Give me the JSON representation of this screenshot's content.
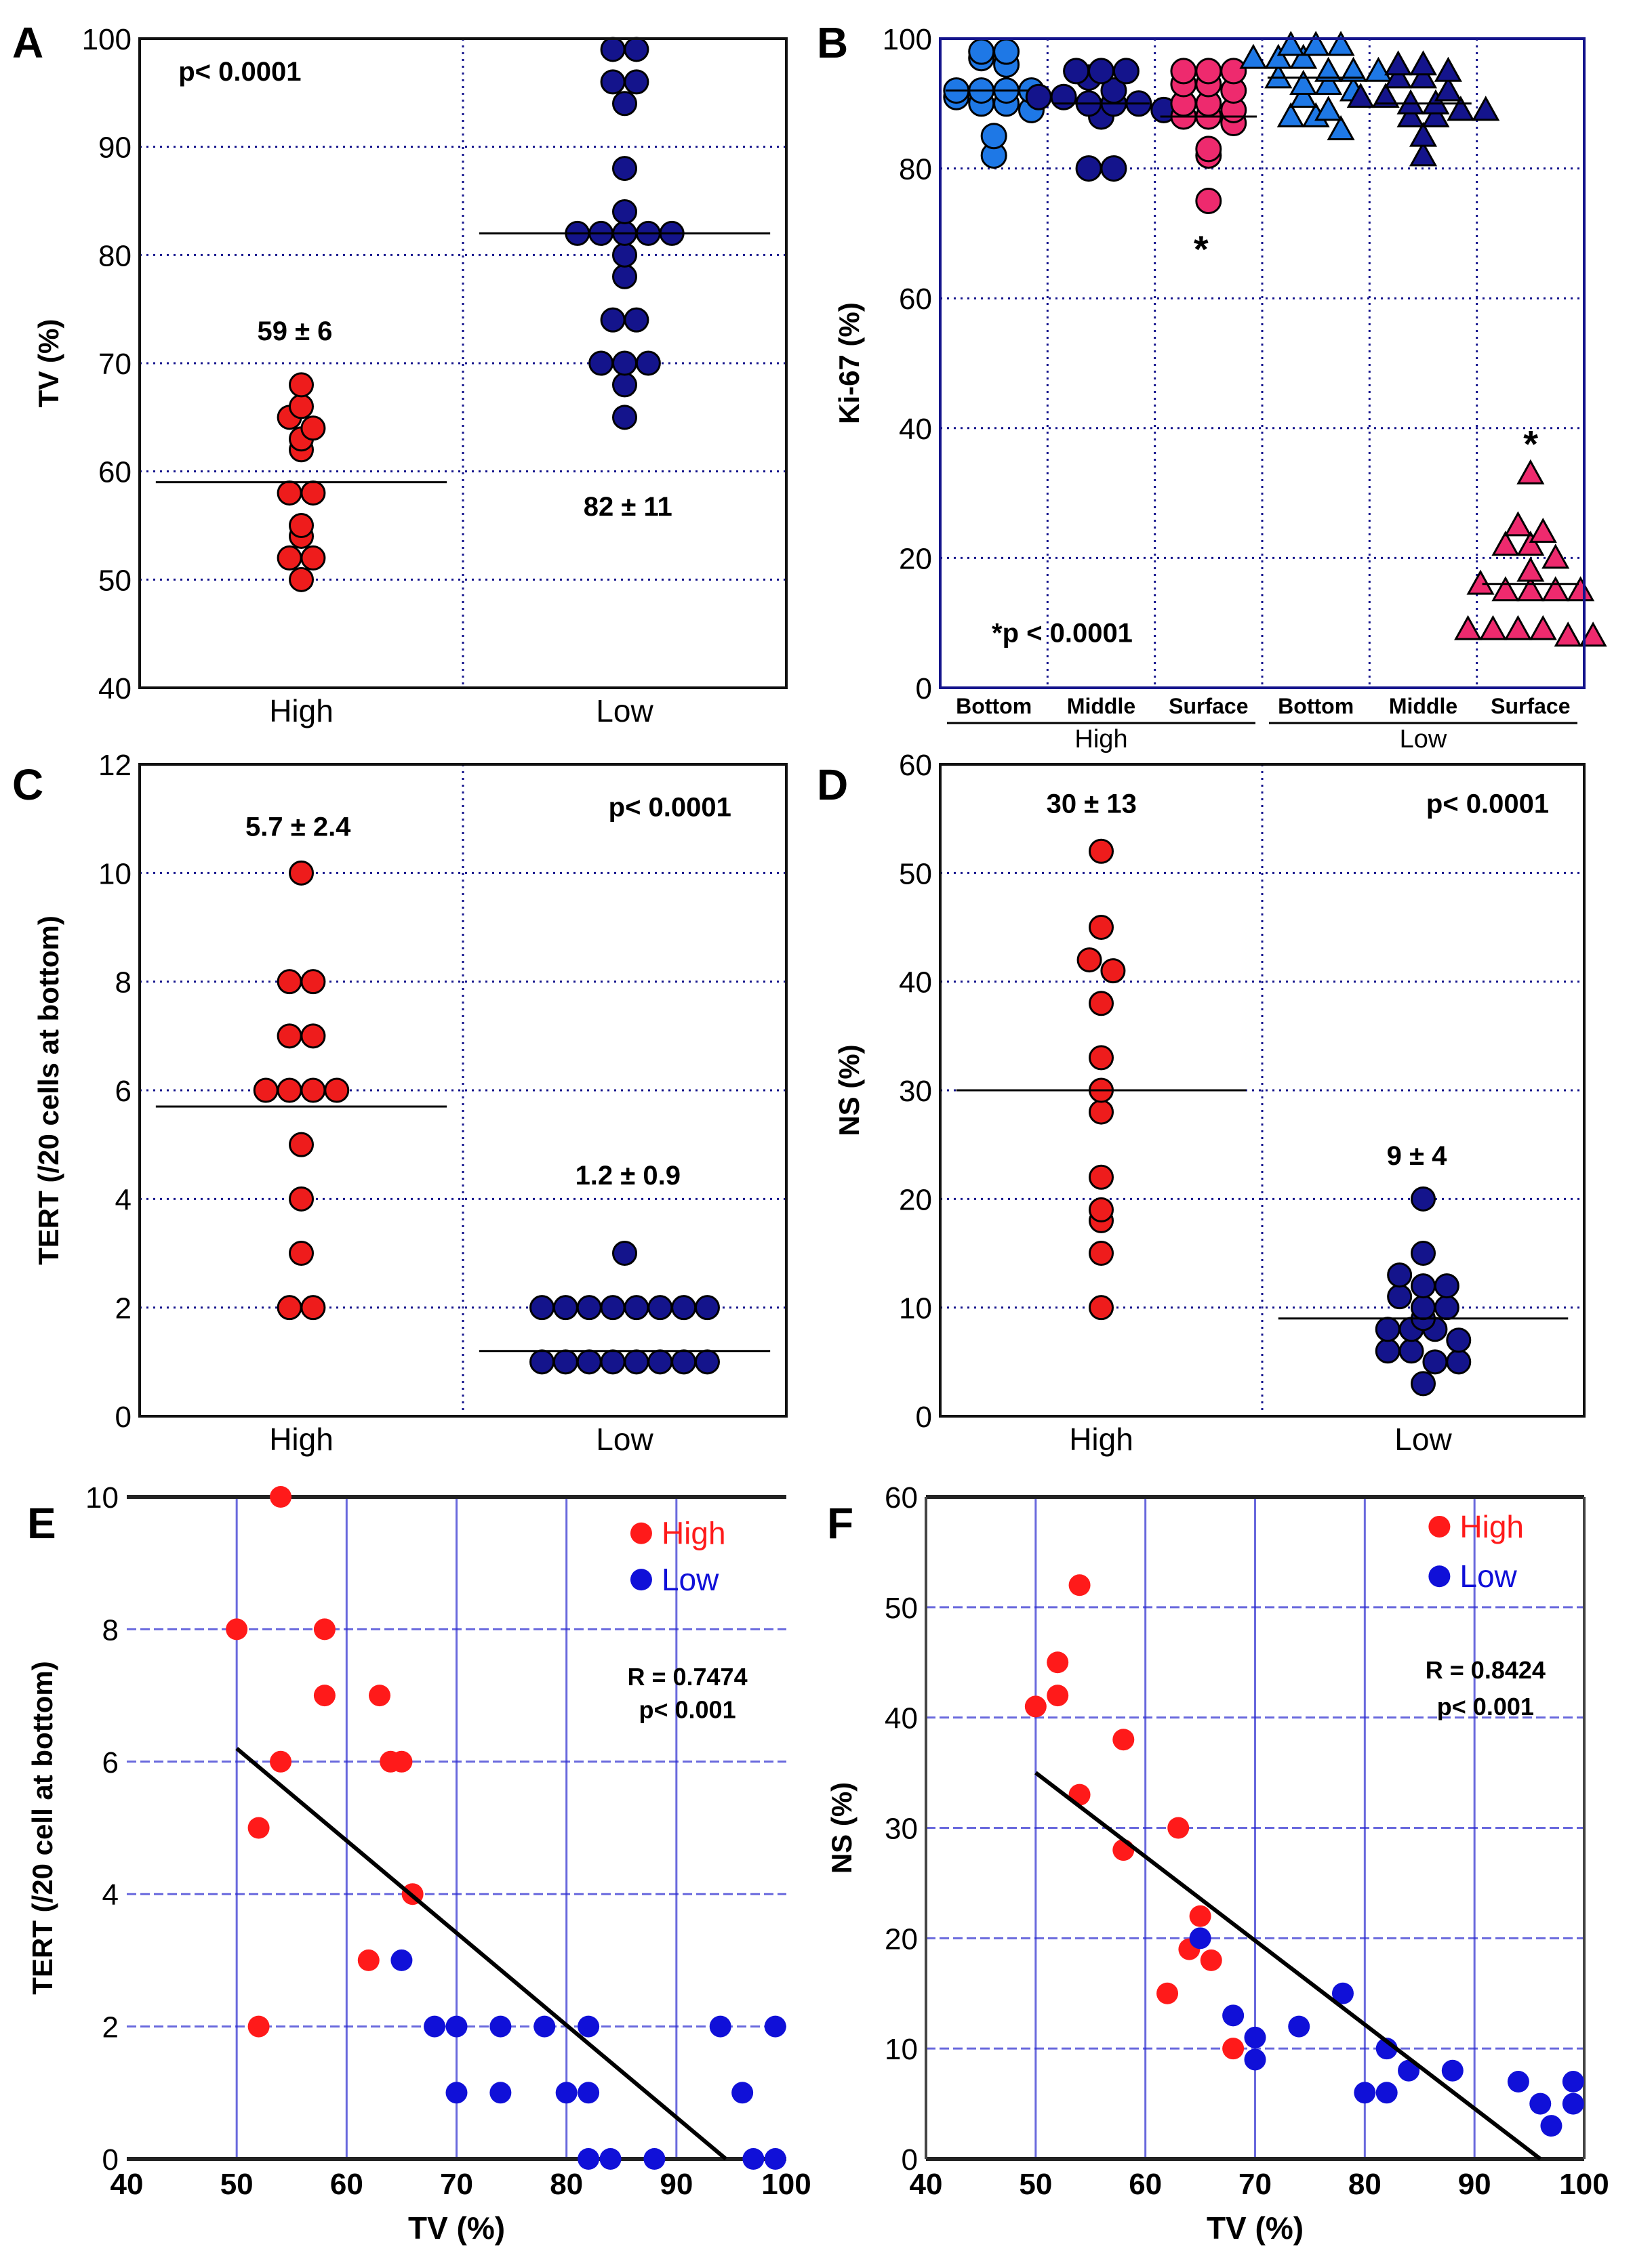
{
  "chart_data": [
    {
      "panel": "A",
      "type": "strip",
      "ylabel": "TV (%)",
      "ylim": [
        40,
        100
      ],
      "ytick_labels": [
        "40",
        "50",
        "60",
        "70",
        "80",
        "90",
        "100"
      ],
      "categories": [
        "High",
        "Low"
      ],
      "groups": [
        {
          "name": "High",
          "marker": "circle",
          "color": "#ee1c1c",
          "mean": 59,
          "values": [
            68,
            66,
            65,
            64,
            63,
            62,
            58,
            58,
            55,
            54,
            52,
            52,
            50
          ]
        },
        {
          "name": "Low",
          "marker": "circle",
          "color": "#14148c",
          "mean": 82,
          "values": [
            99,
            99,
            96,
            96,
            94,
            88,
            84,
            82,
            82,
            82,
            82,
            82,
            80,
            78,
            74,
            74,
            70,
            70,
            70,
            68,
            65
          ]
        }
      ],
      "annotations": [
        "p< 0.0001",
        "59 ± 6",
        "82 ± 11"
      ]
    },
    {
      "panel": "B",
      "type": "strip",
      "ylabel": "Ki-67 (%)",
      "ylim": [
        0,
        100
      ],
      "ytick_labels": [
        "0",
        "20",
        "40",
        "60",
        "80",
        "100"
      ],
      "categories": [
        "Bottom",
        "Middle",
        "Surface",
        "Bottom",
        "Middle",
        "Surface"
      ],
      "group_labels": [
        "High",
        "Low"
      ],
      "groups": [
        {
          "name": "High Bottom",
          "marker": "circle",
          "color": "#1e78e6",
          "mean": 92,
          "values": [
            98,
            98,
            97,
            96,
            92,
            92,
            92,
            92,
            91,
            90,
            90,
            89,
            85,
            82
          ]
        },
        {
          "name": "High Middle",
          "marker": "circle",
          "color": "#14148c",
          "mean": 90,
          "values": [
            95,
            95,
            95,
            94,
            92,
            91,
            91,
            90,
            90,
            90,
            89,
            88,
            80,
            80
          ]
        },
        {
          "name": "High Surface",
          "marker": "circle",
          "color": "#ee2a6e",
          "mean": 88,
          "values": [
            95,
            95,
            95,
            93,
            93,
            92,
            90,
            90,
            89,
            88,
            88,
            87,
            83,
            82,
            75
          ]
        },
        {
          "name": "Low Bottom",
          "marker": "triangle",
          "color": "#1e78e6",
          "mean": 94,
          "values": [
            99,
            99,
            99,
            97,
            97,
            97,
            95,
            95,
            95,
            94,
            93,
            93,
            92,
            91,
            89,
            88,
            88,
            86
          ]
        },
        {
          "name": "Low Middle",
          "marker": "triangle",
          "color": "#14148c",
          "mean": 90,
          "values": [
            96,
            96,
            95,
            94,
            94,
            92,
            91,
            91,
            90,
            90,
            89,
            89,
            88,
            88,
            85,
            82
          ]
        },
        {
          "name": "Low Surface",
          "marker": "triangle",
          "color": "#ee2a6e",
          "mean": 16,
          "values": [
            33,
            25,
            24,
            22,
            22,
            20,
            18,
            16,
            15,
            15,
            15,
            15,
            9,
            9,
            9,
            9,
            8,
            8
          ]
        }
      ],
      "annotations": [
        "*",
        "*",
        "*p < 0.0001"
      ]
    },
    {
      "panel": "C",
      "type": "strip",
      "ylabel": "TERT (/20 cells at bottom)",
      "ylim": [
        0,
        12
      ],
      "ytick_labels": [
        "0",
        "2",
        "4",
        "6",
        "8",
        "10",
        "12"
      ],
      "categories": [
        "High",
        "Low"
      ],
      "groups": [
        {
          "name": "High",
          "marker": "circle",
          "color": "#ee1c1c",
          "mean": 5.7,
          "values": [
            10,
            8,
            8,
            7,
            7,
            6,
            6,
            6,
            6,
            5,
            4,
            3,
            2,
            2
          ]
        },
        {
          "name": "Low",
          "marker": "circle",
          "color": "#14148c",
          "mean": 1.2,
          "values": [
            3,
            2,
            2,
            2,
            2,
            2,
            2,
            2,
            2,
            1,
            1,
            1,
            1,
            1,
            1,
            1,
            1
          ]
        }
      ],
      "annotations": [
        "5.7 ± 2.4",
        "1.2 ± 0.9",
        "p< 0.0001"
      ]
    },
    {
      "panel": "D",
      "type": "strip",
      "ylabel": "NS (%)",
      "ylim": [
        0,
        60
      ],
      "ytick_labels": [
        "0",
        "10",
        "20",
        "30",
        "40",
        "50",
        "60"
      ],
      "categories": [
        "High",
        "Low"
      ],
      "groups": [
        {
          "name": "High",
          "marker": "circle",
          "color": "#ee1c1c",
          "mean": 30,
          "values": [
            52,
            45,
            42,
            41,
            38,
            33,
            30,
            28,
            22,
            19,
            18,
            15,
            10
          ]
        },
        {
          "name": "Low",
          "marker": "circle",
          "color": "#14148c",
          "mean": 9,
          "values": [
            20,
            15,
            13,
            12,
            12,
            11,
            10,
            10,
            9,
            8,
            8,
            8,
            7,
            6,
            6,
            5,
            5,
            3
          ]
        }
      ],
      "annotations": [
        "30 ± 13",
        "9 ± 4",
        "p< 0.0001"
      ]
    },
    {
      "panel": "E",
      "type": "scatter",
      "xlabel": "TV (%)",
      "ylabel": "TERT (/20 cell at bottom)",
      "xlim": [
        40,
        100
      ],
      "ylim": [
        0,
        10
      ],
      "xtick_labels": [
        "40",
        "50",
        "60",
        "70",
        "80",
        "90",
        "100"
      ],
      "ytick_labels": [
        "0",
        "2",
        "4",
        "6",
        "8",
        "10"
      ],
      "series": [
        {
          "name": "High",
          "color": "#ff1a1a",
          "points": [
            [
              54,
              10
            ],
            [
              50,
              8
            ],
            [
              58,
              8
            ],
            [
              58,
              7
            ],
            [
              63,
              7
            ],
            [
              54,
              6
            ],
            [
              64,
              6
            ],
            [
              65,
              6
            ],
            [
              52,
              5
            ],
            [
              66,
              4
            ],
            [
              62,
              3
            ],
            [
              52,
              2
            ]
          ]
        },
        {
          "name": "Low",
          "color": "#1010d8",
          "points": [
            [
              65,
              3
            ],
            [
              68,
              2
            ],
            [
              70,
              2
            ],
            [
              74,
              2
            ],
            [
              78,
              2
            ],
            [
              82,
              2
            ],
            [
              94,
              2
            ],
            [
              99,
              2
            ],
            [
              70,
              1
            ],
            [
              74,
              1
            ],
            [
              80,
              1
            ],
            [
              82,
              1
            ],
            [
              96,
              1
            ],
            [
              82,
              0
            ],
            [
              84,
              0
            ],
            [
              88,
              0
            ],
            [
              97,
              0
            ],
            [
              99,
              0
            ]
          ]
        }
      ],
      "fit_line": [
        [
          50,
          6.2
        ],
        [
          94.5,
          0
        ]
      ],
      "annotations": [
        "R = 0.7474",
        "p< 0.001"
      ]
    },
    {
      "panel": "F",
      "type": "scatter",
      "xlabel": "TV (%)",
      "ylabel": "NS (%)",
      "xlim": [
        40,
        100
      ],
      "ylim": [
        0,
        60
      ],
      "xtick_labels": [
        "40",
        "50",
        "60",
        "70",
        "80",
        "90",
        "100"
      ],
      "ytick_labels": [
        "0",
        "10",
        "20",
        "30",
        "40",
        "50",
        "60"
      ],
      "series": [
        {
          "name": "High",
          "color": "#ff1a1a",
          "points": [
            [
              54,
              52
            ],
            [
              52,
              45
            ],
            [
              52,
              42
            ],
            [
              50,
              41
            ],
            [
              58,
              38
            ],
            [
              54,
              33
            ],
            [
              63,
              30
            ],
            [
              58,
              28
            ],
            [
              65,
              22
            ],
            [
              64,
              19
            ],
            [
              66,
              18
            ],
            [
              62,
              15
            ],
            [
              68,
              10
            ]
          ]
        },
        {
          "name": "Low",
          "color": "#1010d8",
          "points": [
            [
              65,
              20
            ],
            [
              78,
              15
            ],
            [
              68,
              13
            ],
            [
              74,
              12
            ],
            [
              70,
              11
            ],
            [
              70,
              9
            ],
            [
              82,
              10
            ],
            [
              84,
              8
            ],
            [
              88,
              8
            ],
            [
              80,
              6
            ],
            [
              82,
              6
            ],
            [
              94,
              7
            ],
            [
              96,
              5
            ],
            [
              97,
              3
            ],
            [
              99,
              7
            ],
            [
              99,
              5
            ]
          ]
        }
      ],
      "fit_line": [
        [
          50,
          35
        ],
        [
          96,
          0
        ]
      ],
      "annotations": [
        "R = 0.8424",
        "p< 0.001"
      ]
    }
  ]
}
